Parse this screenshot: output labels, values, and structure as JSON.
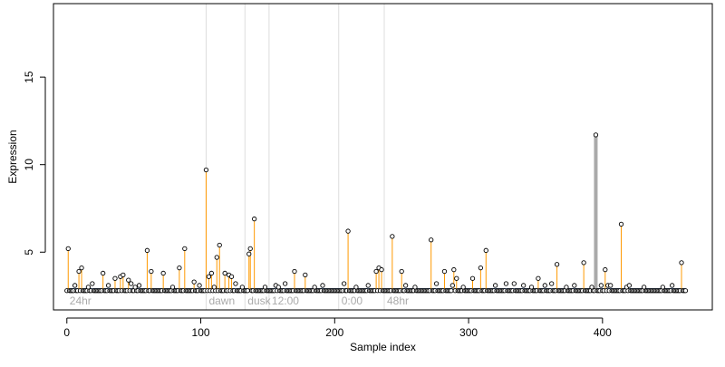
{
  "chart_data": {
    "type": "scatter",
    "xlabel": "Sample index",
    "ylabel": "Expression",
    "xlim": [
      -10,
      482
    ],
    "ylim": [
      1.7,
      19.2
    ],
    "x_ticks": [
      0,
      100,
      200,
      300,
      400
    ],
    "y_ticks": [
      5,
      10,
      15
    ],
    "baseline": 2.8,
    "threshold": 2.9,
    "colors": {
      "stem": "#ff9900",
      "threshold_line": "#7b9fd4",
      "vline": "#dddddd",
      "annotation": "#aaaaaa",
      "spike": "#aaaaaa",
      "point_fill": "#ffffff",
      "point_stroke": "#000000",
      "axis": "#000000"
    },
    "period_markers": [
      {
        "x": 104,
        "label": "dawn"
      },
      {
        "x": 133,
        "label": "dusk"
      },
      {
        "x": 151,
        "label": "12:00"
      },
      {
        "x": 203,
        "label": "0:00"
      },
      {
        "x": 237,
        "label": "48hr"
      }
    ],
    "start_label": "24hr",
    "spike": {
      "x": 395,
      "y": 11.7
    },
    "peaks": [
      {
        "x": 1,
        "y": 5.2
      },
      {
        "x": 9,
        "y": 3.9
      },
      {
        "x": 11,
        "y": 4.1
      },
      {
        "x": 27,
        "y": 3.8
      },
      {
        "x": 36,
        "y": 3.5
      },
      {
        "x": 40,
        "y": 3.6
      },
      {
        "x": 42,
        "y": 3.7
      },
      {
        "x": 46,
        "y": 3.4
      },
      {
        "x": 60,
        "y": 5.1
      },
      {
        "x": 63,
        "y": 3.9
      },
      {
        "x": 72,
        "y": 3.8
      },
      {
        "x": 84,
        "y": 4.1
      },
      {
        "x": 88,
        "y": 5.2
      },
      {
        "x": 95,
        "y": 3.3
      },
      {
        "x": 104,
        "y": 9.7
      },
      {
        "x": 106,
        "y": 3.6
      },
      {
        "x": 108,
        "y": 3.8
      },
      {
        "x": 112,
        "y": 4.7
      },
      {
        "x": 114,
        "y": 5.4
      },
      {
        "x": 118,
        "y": 3.8
      },
      {
        "x": 121,
        "y": 3.7
      },
      {
        "x": 123,
        "y": 3.6
      },
      {
        "x": 136,
        "y": 4.9
      },
      {
        "x": 137,
        "y": 5.2
      },
      {
        "x": 140,
        "y": 6.9
      },
      {
        "x": 170,
        "y": 3.9
      },
      {
        "x": 178,
        "y": 3.7
      },
      {
        "x": 210,
        "y": 6.2
      },
      {
        "x": 231,
        "y": 3.9
      },
      {
        "x": 233,
        "y": 4.1
      },
      {
        "x": 235,
        "y": 4.0
      },
      {
        "x": 243,
        "y": 5.9
      },
      {
        "x": 250,
        "y": 3.9
      },
      {
        "x": 272,
        "y": 5.7
      },
      {
        "x": 282,
        "y": 3.9
      },
      {
        "x": 289,
        "y": 4.0
      },
      {
        "x": 291,
        "y": 3.5
      },
      {
        "x": 303,
        "y": 3.5
      },
      {
        "x": 309,
        "y": 4.1
      },
      {
        "x": 313,
        "y": 5.1
      },
      {
        "x": 352,
        "y": 3.5
      },
      {
        "x": 366,
        "y": 4.3
      },
      {
        "x": 386,
        "y": 4.4
      },
      {
        "x": 402,
        "y": 4.0
      },
      {
        "x": 414,
        "y": 6.6
      },
      {
        "x": 459,
        "y": 4.4
      }
    ],
    "minor_points": [
      {
        "x": 6,
        "y": 3.1
      },
      {
        "x": 16,
        "y": 3.0
      },
      {
        "x": 19,
        "y": 3.2
      },
      {
        "x": 31,
        "y": 3.1
      },
      {
        "x": 48,
        "y": 3.2
      },
      {
        "x": 51,
        "y": 3.0
      },
      {
        "x": 54,
        "y": 3.1
      },
      {
        "x": 79,
        "y": 3.0
      },
      {
        "x": 99,
        "y": 3.1
      },
      {
        "x": 110,
        "y": 3.0
      },
      {
        "x": 126,
        "y": 3.2
      },
      {
        "x": 131,
        "y": 3.0
      },
      {
        "x": 148,
        "y": 3.0
      },
      {
        "x": 156,
        "y": 3.1
      },
      {
        "x": 158,
        "y": 3.0
      },
      {
        "x": 163,
        "y": 3.2
      },
      {
        "x": 185,
        "y": 3.0
      },
      {
        "x": 191,
        "y": 3.1
      },
      {
        "x": 207,
        "y": 3.2
      },
      {
        "x": 216,
        "y": 3.0
      },
      {
        "x": 225,
        "y": 3.1
      },
      {
        "x": 253,
        "y": 3.1
      },
      {
        "x": 260,
        "y": 3.0
      },
      {
        "x": 276,
        "y": 3.2
      },
      {
        "x": 288,
        "y": 3.1
      },
      {
        "x": 296,
        "y": 3.0
      },
      {
        "x": 320,
        "y": 3.1
      },
      {
        "x": 328,
        "y": 3.2
      },
      {
        "x": 334,
        "y": 3.2
      },
      {
        "x": 341,
        "y": 3.1
      },
      {
        "x": 347,
        "y": 3.0
      },
      {
        "x": 357,
        "y": 3.1
      },
      {
        "x": 362,
        "y": 3.2
      },
      {
        "x": 373,
        "y": 3.0
      },
      {
        "x": 379,
        "y": 3.1
      },
      {
        "x": 392,
        "y": 3.0
      },
      {
        "x": 399,
        "y": 3.1
      },
      {
        "x": 404,
        "y": 3.1
      },
      {
        "x": 406,
        "y": 3.1
      },
      {
        "x": 418,
        "y": 3.0
      },
      {
        "x": 420,
        "y": 3.1
      },
      {
        "x": 431,
        "y": 3.0
      },
      {
        "x": 445,
        "y": 3.0
      },
      {
        "x": 452,
        "y": 3.1
      }
    ],
    "background": {
      "x_start": 0,
      "x_end": 462,
      "step": 1
    }
  }
}
